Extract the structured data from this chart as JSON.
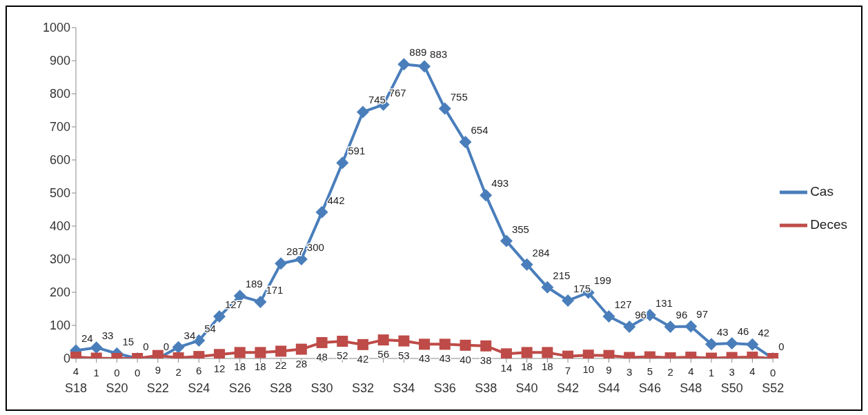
{
  "chart_data": {
    "type": "line",
    "categories": [
      "S18",
      null,
      "S20",
      null,
      "S22",
      null,
      "S24",
      null,
      "S26",
      null,
      "S28",
      null,
      "S30",
      null,
      "S32",
      null,
      "S34",
      null,
      "S36",
      null,
      "S38",
      null,
      "S40",
      null,
      "S42",
      null,
      "S44",
      null,
      "S46",
      null,
      "S48",
      null,
      "S50",
      null,
      "S52"
    ],
    "series": [
      {
        "name": "Cas",
        "color": "#4a7ebb",
        "marker": "diamond",
        "values": [
          24,
          33,
          15,
          0,
          0,
          34,
          54,
          127,
          189,
          171,
          287,
          300,
          442,
          591,
          745,
          767,
          889,
          883,
          755,
          654,
          493,
          355,
          284,
          215,
          175,
          199,
          127,
          96,
          131,
          96,
          97,
          43,
          46,
          42,
          0
        ]
      },
      {
        "name": "Deces",
        "color": "#be4b48",
        "marker": "square",
        "values": [
          4,
          1,
          0,
          0,
          9,
          2,
          6,
          12,
          18,
          18,
          22,
          28,
          48,
          52,
          42,
          56,
          53,
          43,
          43,
          40,
          38,
          14,
          18,
          18,
          7,
          10,
          9,
          3,
          5,
          2,
          4,
          1,
          3,
          4,
          0
        ]
      }
    ],
    "ylim": [
      0,
      1000
    ],
    "yticks": [
      0,
      100,
      200,
      300,
      400,
      500,
      600,
      700,
      800,
      900,
      1000
    ],
    "grid": false,
    "legend": "right",
    "data_labels": true
  }
}
